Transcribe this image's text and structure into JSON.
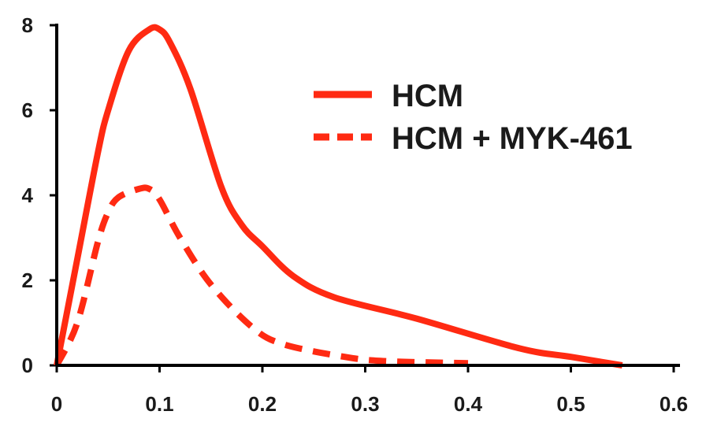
{
  "chart_data": {
    "type": "line",
    "title": "",
    "xlabel": "",
    "ylabel": "",
    "xlim": [
      0,
      0.6
    ],
    "ylim": [
      0,
      8
    ],
    "xticks": [
      0,
      0.1,
      0.2,
      0.3,
      0.4,
      0.5,
      0.6
    ],
    "xtick_labels": [
      "0",
      "0.1",
      "0.2",
      "0.3",
      "0.4",
      "0.5",
      "0.6"
    ],
    "yticks": [
      0,
      2,
      4,
      6,
      8
    ],
    "ytick_labels": [
      "0",
      "2",
      "4",
      "6",
      "8"
    ],
    "grid": false,
    "legend_position": "top-right",
    "series": [
      {
        "name": "HCM",
        "color": "#ff2a12",
        "line_style": "solid",
        "x": [
          0,
          0.02,
          0.04,
          0.05,
          0.07,
          0.09,
          0.1,
          0.11,
          0.13,
          0.16,
          0.18,
          0.2,
          0.23,
          0.27,
          0.35,
          0.45,
          0.5,
          0.55
        ],
        "y": [
          0,
          2.5,
          5.0,
          6.0,
          7.4,
          7.9,
          7.9,
          7.6,
          6.5,
          4.2,
          3.3,
          2.8,
          2.1,
          1.6,
          1.1,
          0.4,
          0.2,
          0.0
        ]
      },
      {
        "name": "HCM + MYK-461",
        "color": "#ff2a12",
        "line_style": "dashed",
        "x": [
          0,
          0.02,
          0.04,
          0.05,
          0.06,
          0.08,
          0.09,
          0.1,
          0.12,
          0.15,
          0.19,
          0.22,
          0.28,
          0.32,
          0.4
        ],
        "y": [
          0,
          1.0,
          2.9,
          3.6,
          3.95,
          4.15,
          4.15,
          3.9,
          3.0,
          1.9,
          0.9,
          0.5,
          0.2,
          0.1,
          0.05
        ]
      }
    ]
  }
}
